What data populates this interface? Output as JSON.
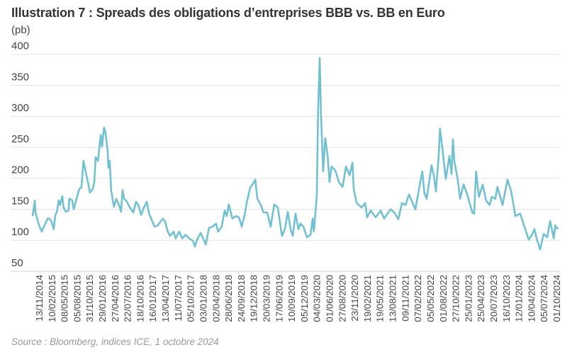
{
  "chart_data": {
    "type": "line",
    "title": "Illustration 7 : Spreads des obligations d’entreprises BBB vs. BB en Euro",
    "ylabel": "(pb)",
    "xlabel": "",
    "source": "Source : Bloomberg, indices ICE, 1 octobre 2024",
    "ylim": [
      50,
      400
    ],
    "xlim": [
      "2014-11-13",
      "2024-10-01"
    ],
    "grid": true,
    "line_color": "#72c1d2",
    "y_ticks": [
      "400",
      "350",
      "300",
      "250",
      "200",
      "150",
      "100",
      "50"
    ],
    "x_ticks": [
      "13/11/2014",
      "10/02/2015",
      "08/05/2015",
      "05/08/2015",
      "31/10/2015",
      "29/01/2016",
      "27/04/2016",
      "22/07/2016",
      "18/10/2016",
      "16/01/2017",
      "13/04/2017",
      "11/07/2017",
      "05/10/2017",
      "03/01/2018",
      "02/04/2018",
      "28/06/2018",
      "24/09/2018",
      "19/12/2018",
      "20/03/2019",
      "17/06/2019",
      "10/09/2019",
      "05/12/2019",
      "04/03/2020",
      "01/06/2020",
      "27/08/2020",
      "23/11/2020",
      "19/02/2021",
      "19/05/2021",
      "13/08/2021",
      "09/11/2021",
      "07/02/2022",
      "05/05/2022",
      "01/08/2022",
      "27/10/2022",
      "25/01/2023",
      "25/04/2023",
      "20/07/2023",
      "16/10/2023",
      "12/01/2024",
      "10/04/2024",
      "05/07/2024",
      "01/10/2024"
    ],
    "series": [
      {
        "x": [
          "2014-11-13",
          "2014-11-28",
          "2014-12-02",
          "2014-12-26",
          "2015-01-15",
          "2015-02-05",
          "2015-02-24",
          "2015-03-08",
          "2015-03-23",
          "2015-04-07",
          "2015-04-17",
          "2015-05-01",
          "2015-05-11",
          "2015-05-20",
          "2015-06-05",
          "2015-06-14",
          "2015-06-29",
          "2015-07-18",
          "2015-07-23",
          "2015-08-12",
          "2015-08-22",
          "2015-09-11",
          "2015-09-30",
          "2015-10-14",
          "2015-10-29",
          "2015-11-18",
          "2015-12-02",
          "2015-12-12",
          "2016-01-01",
          "2016-01-11",
          "2016-01-20",
          "2016-02-05",
          "2016-02-24",
          "2016-03-04",
          "2016-03-18",
          "2016-03-28",
          "2016-04-12",
          "2016-04-17",
          "2016-04-26",
          "2016-05-06",
          "2016-05-25",
          "2016-06-10",
          "2016-06-29",
          "2016-07-13",
          "2016-07-23",
          "2016-08-03",
          "2016-08-17",
          "2016-09-11",
          "2016-10-05",
          "2016-10-24",
          "2016-11-09",
          "2016-11-28",
          "2016-12-17",
          "2017-01-06",
          "2017-01-21",
          "2017-02-14",
          "2017-02-28",
          "2017-03-23",
          "2017-04-13",
          "2017-04-27",
          "2017-05-11",
          "2017-05-30",
          "2017-06-15",
          "2017-07-09",
          "2017-07-23",
          "2017-08-17",
          "2017-09-07",
          "2017-09-30",
          "2017-10-24",
          "2017-11-19",
          "2017-12-03",
          "2017-12-17",
          "2018-01-11",
          "2018-02-15",
          "2018-03-09",
          "2018-04-03",
          "2018-04-27",
          "2018-05-11",
          "2018-06-05",
          "2018-06-25",
          "2018-07-09",
          "2018-07-23",
          "2018-08-17",
          "2018-09-11",
          "2018-10-01",
          "2018-10-20",
          "2018-11-09",
          "2018-11-23",
          "2018-12-17",
          "2019-01-02",
          "2019-01-21",
          "2019-02-05",
          "2019-02-28",
          "2019-03-19",
          "2019-04-13",
          "2019-05-07",
          "2019-06-01",
          "2019-06-25",
          "2019-07-24",
          "2019-08-13",
          "2019-09-02",
          "2019-09-21",
          "2019-10-06",
          "2019-10-25",
          "2019-11-14",
          "2019-11-28",
          "2019-12-18",
          "2020-01-12",
          "2020-02-05",
          "2020-02-20",
          "2020-02-28",
          "2020-03-19",
          "2020-03-28",
          "2020-04-08",
          "2020-04-17",
          "2020-05-02",
          "2020-05-16",
          "2020-06-01",
          "2020-06-15",
          "2020-06-29",
          "2020-07-24",
          "2020-08-18",
          "2020-09-12",
          "2020-10-06",
          "2020-10-30",
          "2020-11-19",
          "2020-11-28",
          "2020-12-18",
          "2021-01-22",
          "2021-02-15",
          "2021-02-28",
          "2021-03-24",
          "2021-04-28",
          "2021-06-01",
          "2021-06-25",
          "2021-08-08",
          "2021-09-02",
          "2021-10-01",
          "2021-10-25",
          "2021-11-19",
          "2021-12-13",
          "2022-01-26",
          "2022-02-20",
          "2022-03-14",
          "2022-03-29",
          "2022-04-13",
          "2022-05-17",
          "2022-06-01",
          "2022-06-16",
          "2022-07-05",
          "2022-07-14",
          "2022-07-29",
          "2022-08-23",
          "2022-09-17",
          "2022-10-01",
          "2022-10-11",
          "2022-10-20",
          "2022-11-14",
          "2022-11-29",
          "2022-12-23",
          "2023-01-17",
          "2023-02-21",
          "2023-03-05",
          "2023-03-19",
          "2023-04-08",
          "2023-05-03",
          "2023-05-27",
          "2023-06-20",
          "2023-07-05",
          "2023-07-29",
          "2023-08-13",
          "2023-09-17",
          "2023-10-21",
          "2023-11-15",
          "2023-12-14",
          "2024-01-17",
          "2024-02-11",
          "2024-03-15",
          "2024-04-09",
          "2024-04-23",
          "2024-05-08",
          "2024-06-01",
          "2024-06-25",
          "2024-07-20",
          "2024-08-09",
          "2024-09-03",
          "2024-09-13",
          "2024-10-01"
        ],
        "y": [
          139,
          164,
          146,
          125,
          114,
          125,
          135,
          135,
          130,
          118,
          139,
          148,
          164,
          157,
          171,
          153,
          146,
          148,
          167,
          165,
          150,
          167,
          183,
          185,
          228,
          205,
          190,
          177,
          183,
          194,
          234,
          228,
          270,
          251,
          282,
          274,
          244,
          217,
          228,
          181,
          154,
          167,
          157,
          146,
          181,
          167,
          164,
          153,
          145,
          162,
          157,
          141,
          153,
          162,
          143,
          130,
          122,
          124,
          131,
          135,
          130,
          114,
          107,
          114,
          103,
          114,
          103,
          109,
          103,
          99,
          90,
          101,
          112,
          93,
          120,
          122,
          127,
          114,
          122,
          148,
          139,
          158,
          135,
          139,
          137,
          122,
          141,
          160,
          185,
          190,
          198,
          167,
          157,
          145,
          145,
          122,
          158,
          153,
          107,
          118,
          146,
          118,
          107,
          143,
          118,
          127,
          122,
          105,
          109,
          135,
          114,
          171,
          305,
          394,
          305,
          211,
          265,
          237,
          194,
          219,
          213,
          194,
          186,
          219,
          205,
          225,
          183,
          160,
          153,
          160,
          137,
          148,
          137,
          148,
          135,
          150,
          145,
          134,
          160,
          157,
          174,
          150,
          183,
          211,
          176,
          167,
          221,
          205,
          179,
          236,
          280,
          251,
          199,
          236,
          207,
          263,
          228,
          196,
          167,
          190,
          174,
          145,
          143,
          211,
          170,
          190,
          164,
          157,
          170,
          167,
          186,
          157,
          198,
          179,
          139,
          143,
          124,
          101,
          110,
          118,
          103,
          85,
          110,
          105,
          131,
          103,
          124,
          118
        ]
      }
    ]
  }
}
